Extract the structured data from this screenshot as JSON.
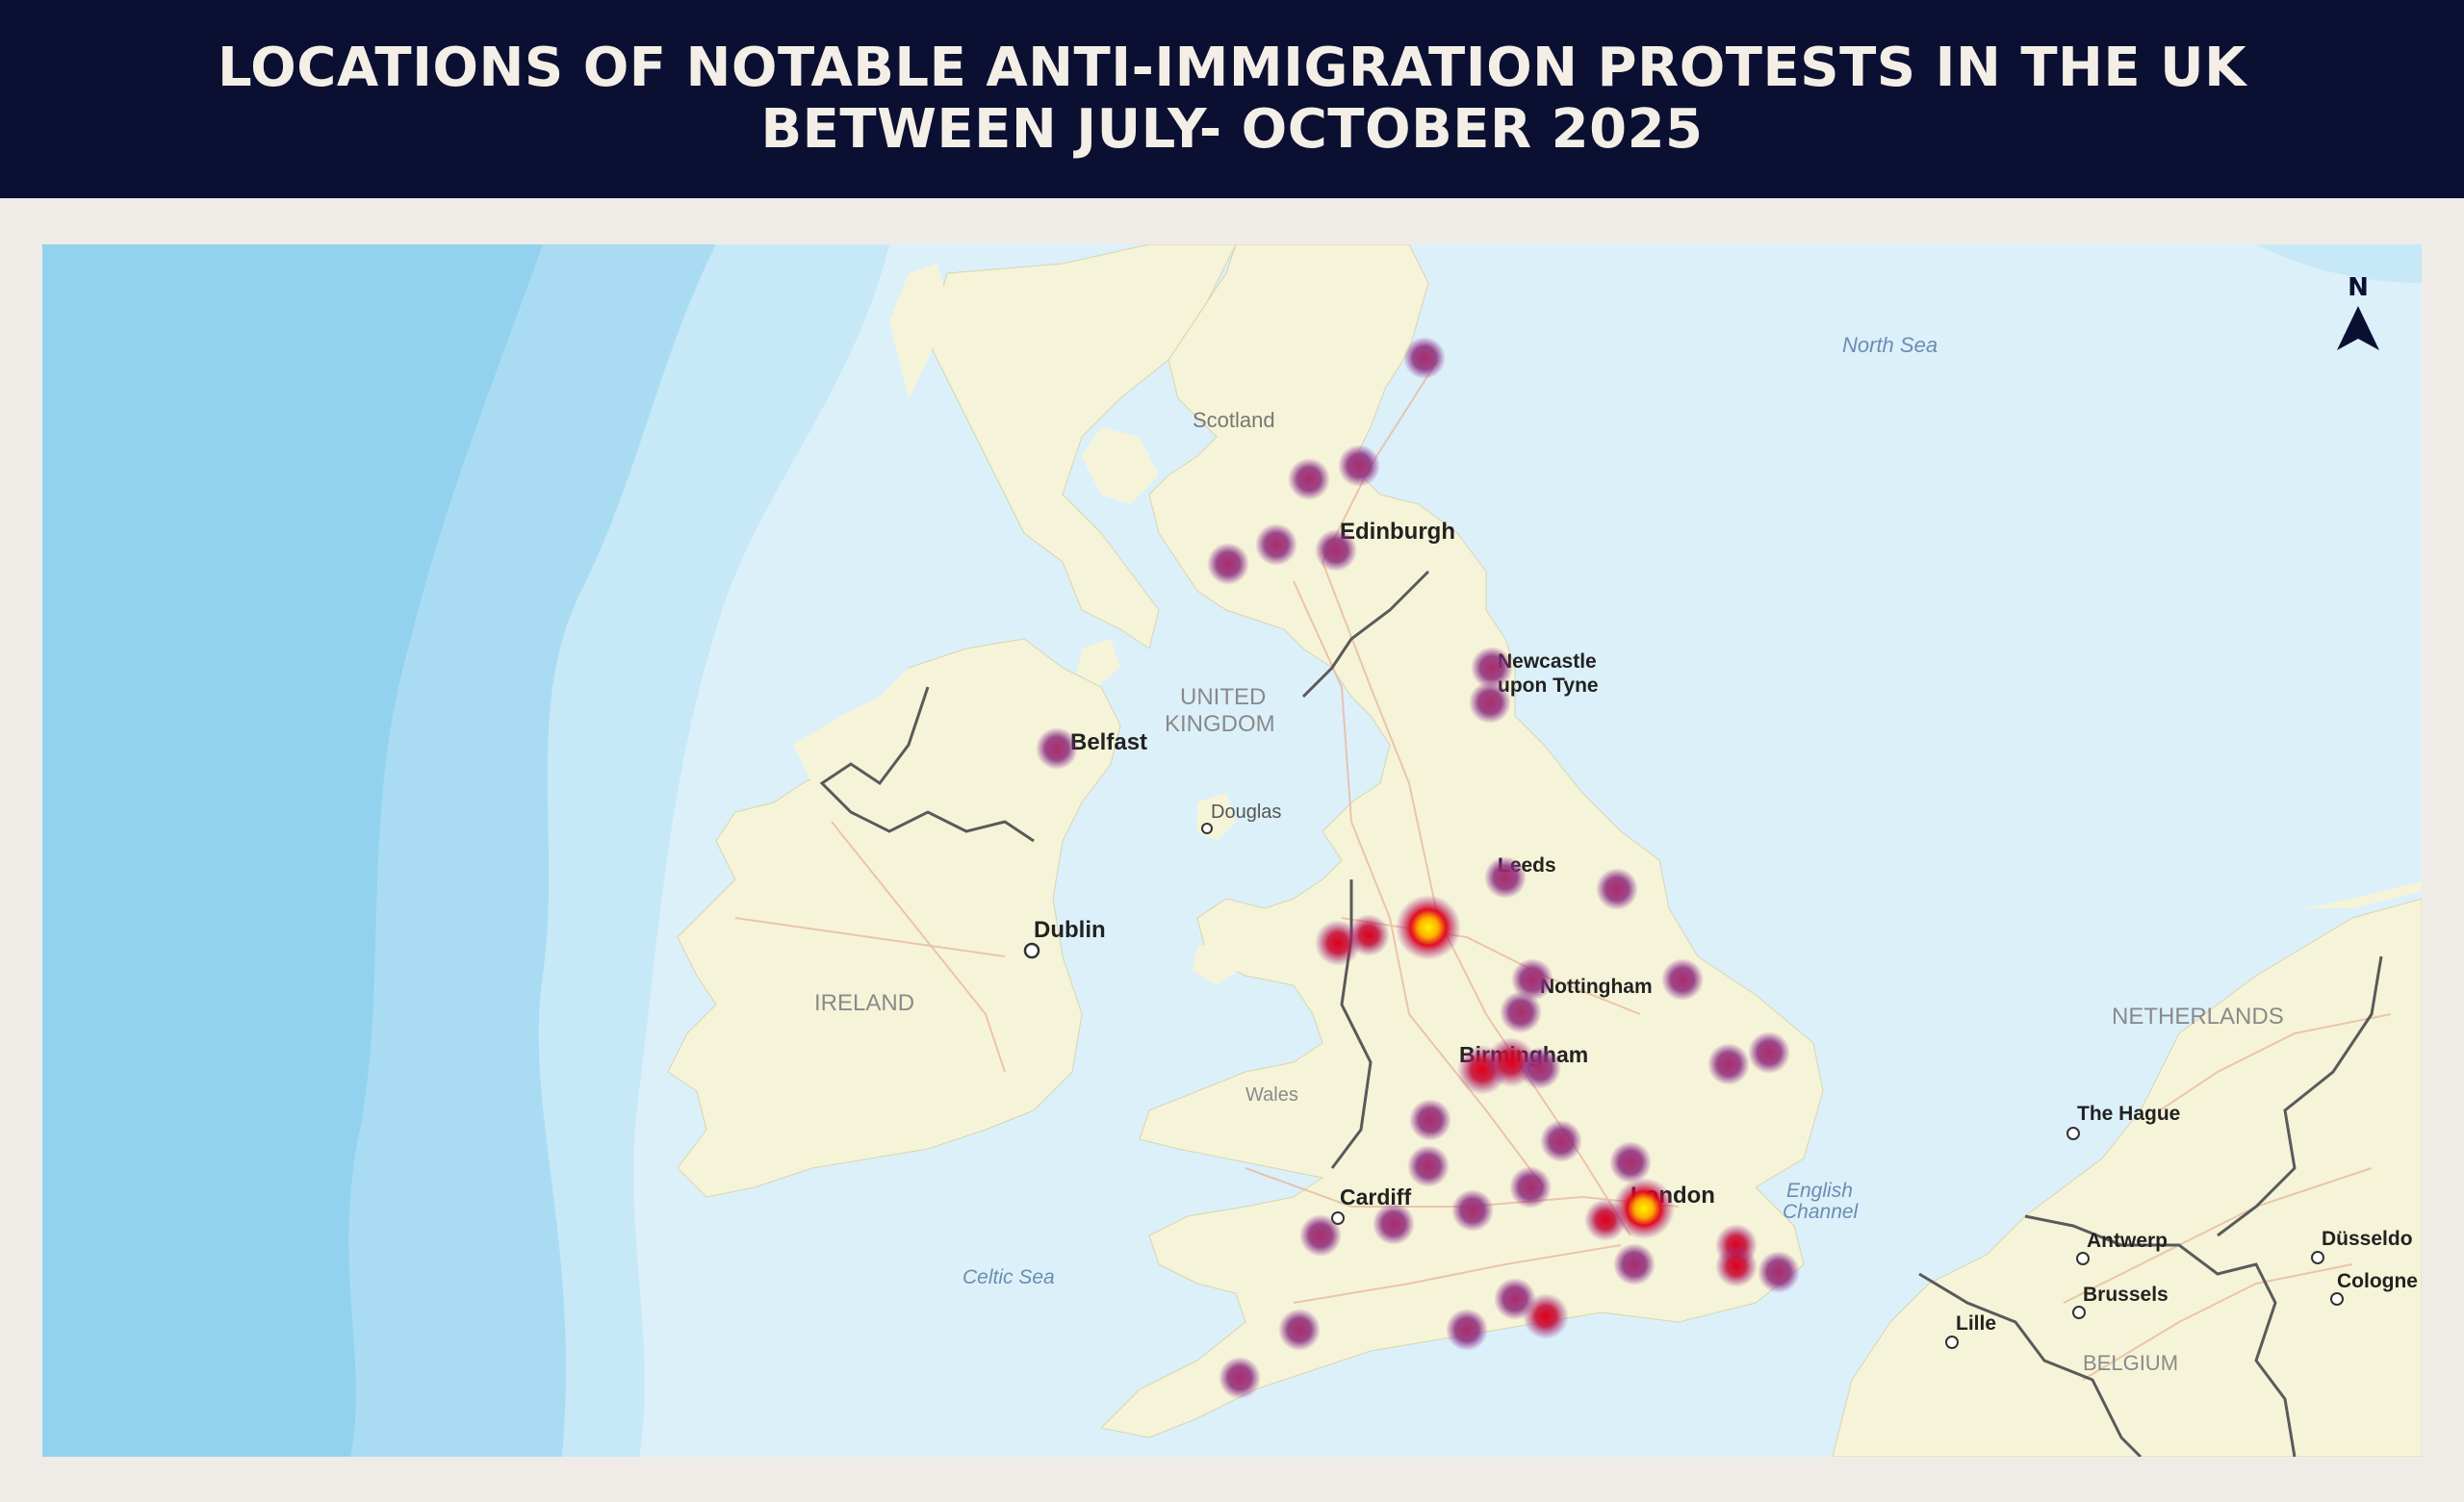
{
  "title": {
    "line1": "LOCATIONS OF NOTABLE ANTI-IMMIGRATION PROTESTS IN THE UK",
    "line2": "BETWEEN JULY- OCTOBER 2025"
  },
  "colors": {
    "header_bg": "#0b1033",
    "header_text": "#f4efe6",
    "sea": "#dcf0fa",
    "deep_sea": "#a9dcf3",
    "land": "#f6f4d8",
    "border": "#5a5a5a",
    "hotspot_low": "#8a2a7a",
    "hotspot_mid": "#d4002a",
    "hotspot_high": "#ffee00"
  },
  "map": {
    "north_arrow": "N",
    "labels": {
      "north_sea": "North Sea",
      "scotland": "Scotland",
      "edinburgh": "Edinburgh",
      "newcastle_1": "Newcastle",
      "newcastle_2": "upon Tyne",
      "united_kingdom_1": "UNITED",
      "united_kingdom_2": "KINGDOM",
      "belfast": "Belfast",
      "douglas": "Douglas",
      "leeds": "Leeds",
      "dublin": "Dublin",
      "ireland": "IRELAND",
      "nottingham": "Nottingham",
      "birmingham": "Birmingham",
      "wales": "Wales",
      "netherlands": "NETHERLANDS",
      "the_hague": "The Hague",
      "cardiff": "Cardiff",
      "london": "London",
      "english_channel_1": "English",
      "english_channel_2": "Channel",
      "antwerp": "Antwerp",
      "dusseldorf": "Düsseldo",
      "brussels": "Brussels",
      "cologne": "Cologne",
      "celtic_sea": "Celtic Sea",
      "lille": "Lille",
      "belgium": "BELGIUM"
    }
  }
}
